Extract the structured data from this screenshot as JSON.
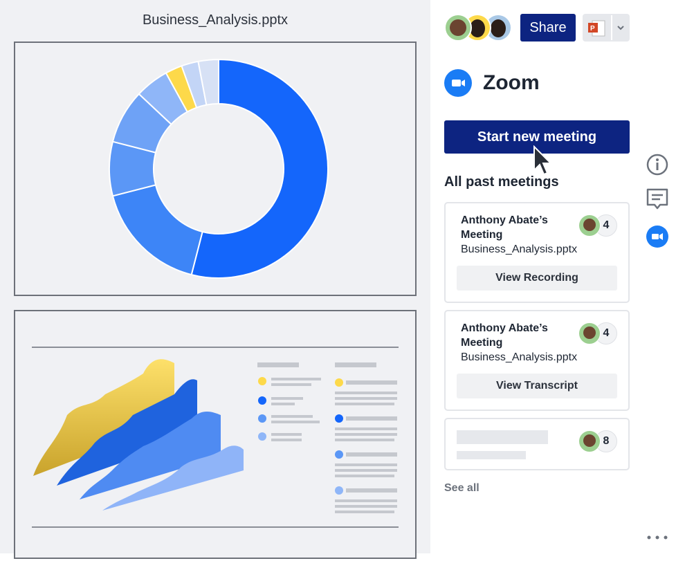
{
  "document": {
    "title": "Business_Analysis.pptx"
  },
  "chart_data": {
    "type": "pie",
    "donut": true,
    "values": [
      54,
      17,
      8,
      8,
      5,
      2.5,
      2.5,
      3
    ],
    "colors": [
      "#1466fb",
      "#3d85f7",
      "#5b97f6",
      "#6ea2f6",
      "#8fb6f8",
      "#fdd94a",
      "#c3d5f6",
      "#d7e1f5"
    ]
  },
  "header": {
    "share_label": "Share",
    "app_icon": "powerpoint-icon"
  },
  "zoom": {
    "title": "Zoom",
    "start_label": "Start new meeting",
    "past_heading": "All past meetings",
    "see_all": "See all"
  },
  "meetings": [
    {
      "title": "Anthony Abate’s Meeting",
      "file": "Business_Analysis.pptx",
      "count": "4",
      "action": "View Recording"
    },
    {
      "title": "Anthony Abate’s Meeting",
      "file": "Business_Analysis.pptx",
      "count": "4",
      "action": "View Transcript"
    },
    {
      "count": "8"
    }
  ],
  "colors": {
    "accent": "#0d2481",
    "zoom": "#1a7cf5"
  }
}
